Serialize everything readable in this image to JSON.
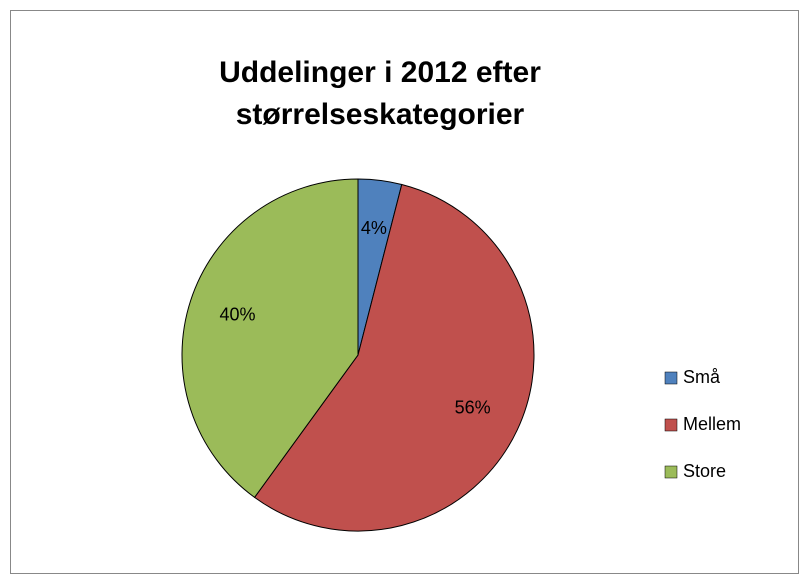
{
  "chart_data": {
    "type": "pie",
    "title": "Uddelinger i 2012 efter størrelseskategorier",
    "categories": [
      "Små",
      "Mellem",
      "Store"
    ],
    "values": [
      4,
      56,
      40
    ],
    "value_labels": [
      "4%",
      "56%",
      "40%"
    ],
    "colors": [
      "#4f81bd",
      "#c0504d",
      "#9bbb59"
    ],
    "legend": "right"
  }
}
